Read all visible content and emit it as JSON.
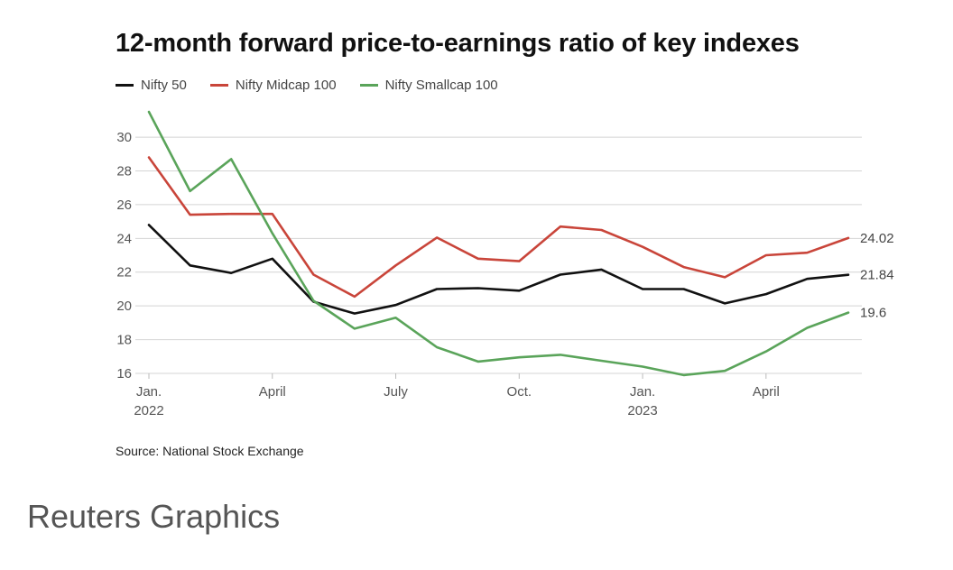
{
  "chart_data": {
    "type": "line",
    "title": "12-month forward price-to-earnings ratio of key indexes",
    "x": [
      "Jan 2022",
      "Feb 2022",
      "Mar 2022",
      "Apr 2022",
      "May 2022",
      "Jun 2022",
      "Jul 2022",
      "Aug 2022",
      "Sep 2022",
      "Oct 2022",
      "Nov 2022",
      "Dec 2022",
      "Jan 2023",
      "Feb 2023",
      "Mar 2023",
      "Apr 2023",
      "May 2023",
      "Jun 2023"
    ],
    "x_ticks": [
      {
        "index": 0,
        "label": "Jan.",
        "sub": "2022"
      },
      {
        "index": 3,
        "label": "April",
        "sub": ""
      },
      {
        "index": 6,
        "label": "July",
        "sub": ""
      },
      {
        "index": 9,
        "label": "Oct.",
        "sub": ""
      },
      {
        "index": 12,
        "label": "Jan.",
        "sub": "2023"
      },
      {
        "index": 15,
        "label": "April",
        "sub": ""
      }
    ],
    "y_ticks": [
      16,
      18,
      20,
      22,
      24,
      26,
      28,
      30
    ],
    "ylim": [
      16,
      31.5
    ],
    "grid": true,
    "legend_position": "top-left",
    "series": [
      {
        "name": "Nifty 50",
        "color": "#111111",
        "end_label": "21.84",
        "values": [
          24.8,
          22.4,
          21.95,
          22.8,
          20.25,
          19.55,
          20.05,
          21.0,
          21.05,
          20.9,
          21.85,
          22.15,
          21.0,
          21.0,
          20.15,
          20.7,
          21.6,
          21.84
        ]
      },
      {
        "name": "Nifty Midcap 100",
        "color": "#c9453a",
        "end_label": "24.02",
        "values": [
          28.8,
          25.4,
          25.45,
          25.45,
          21.85,
          20.55,
          22.4,
          24.05,
          22.8,
          22.65,
          24.7,
          24.5,
          23.5,
          22.3,
          21.7,
          23.0,
          23.15,
          24.02
        ]
      },
      {
        "name": "Nifty Smallcap 100",
        "color": "#5aa45a",
        "end_label": "19.6",
        "values": [
          31.5,
          26.8,
          28.7,
          24.3,
          20.3,
          18.65,
          19.3,
          17.55,
          16.7,
          16.95,
          17.1,
          16.75,
          16.4,
          15.9,
          16.15,
          17.3,
          18.7,
          19.6
        ]
      }
    ]
  },
  "source": "Source: National Stock Exchange",
  "brand": "Reuters Graphics"
}
